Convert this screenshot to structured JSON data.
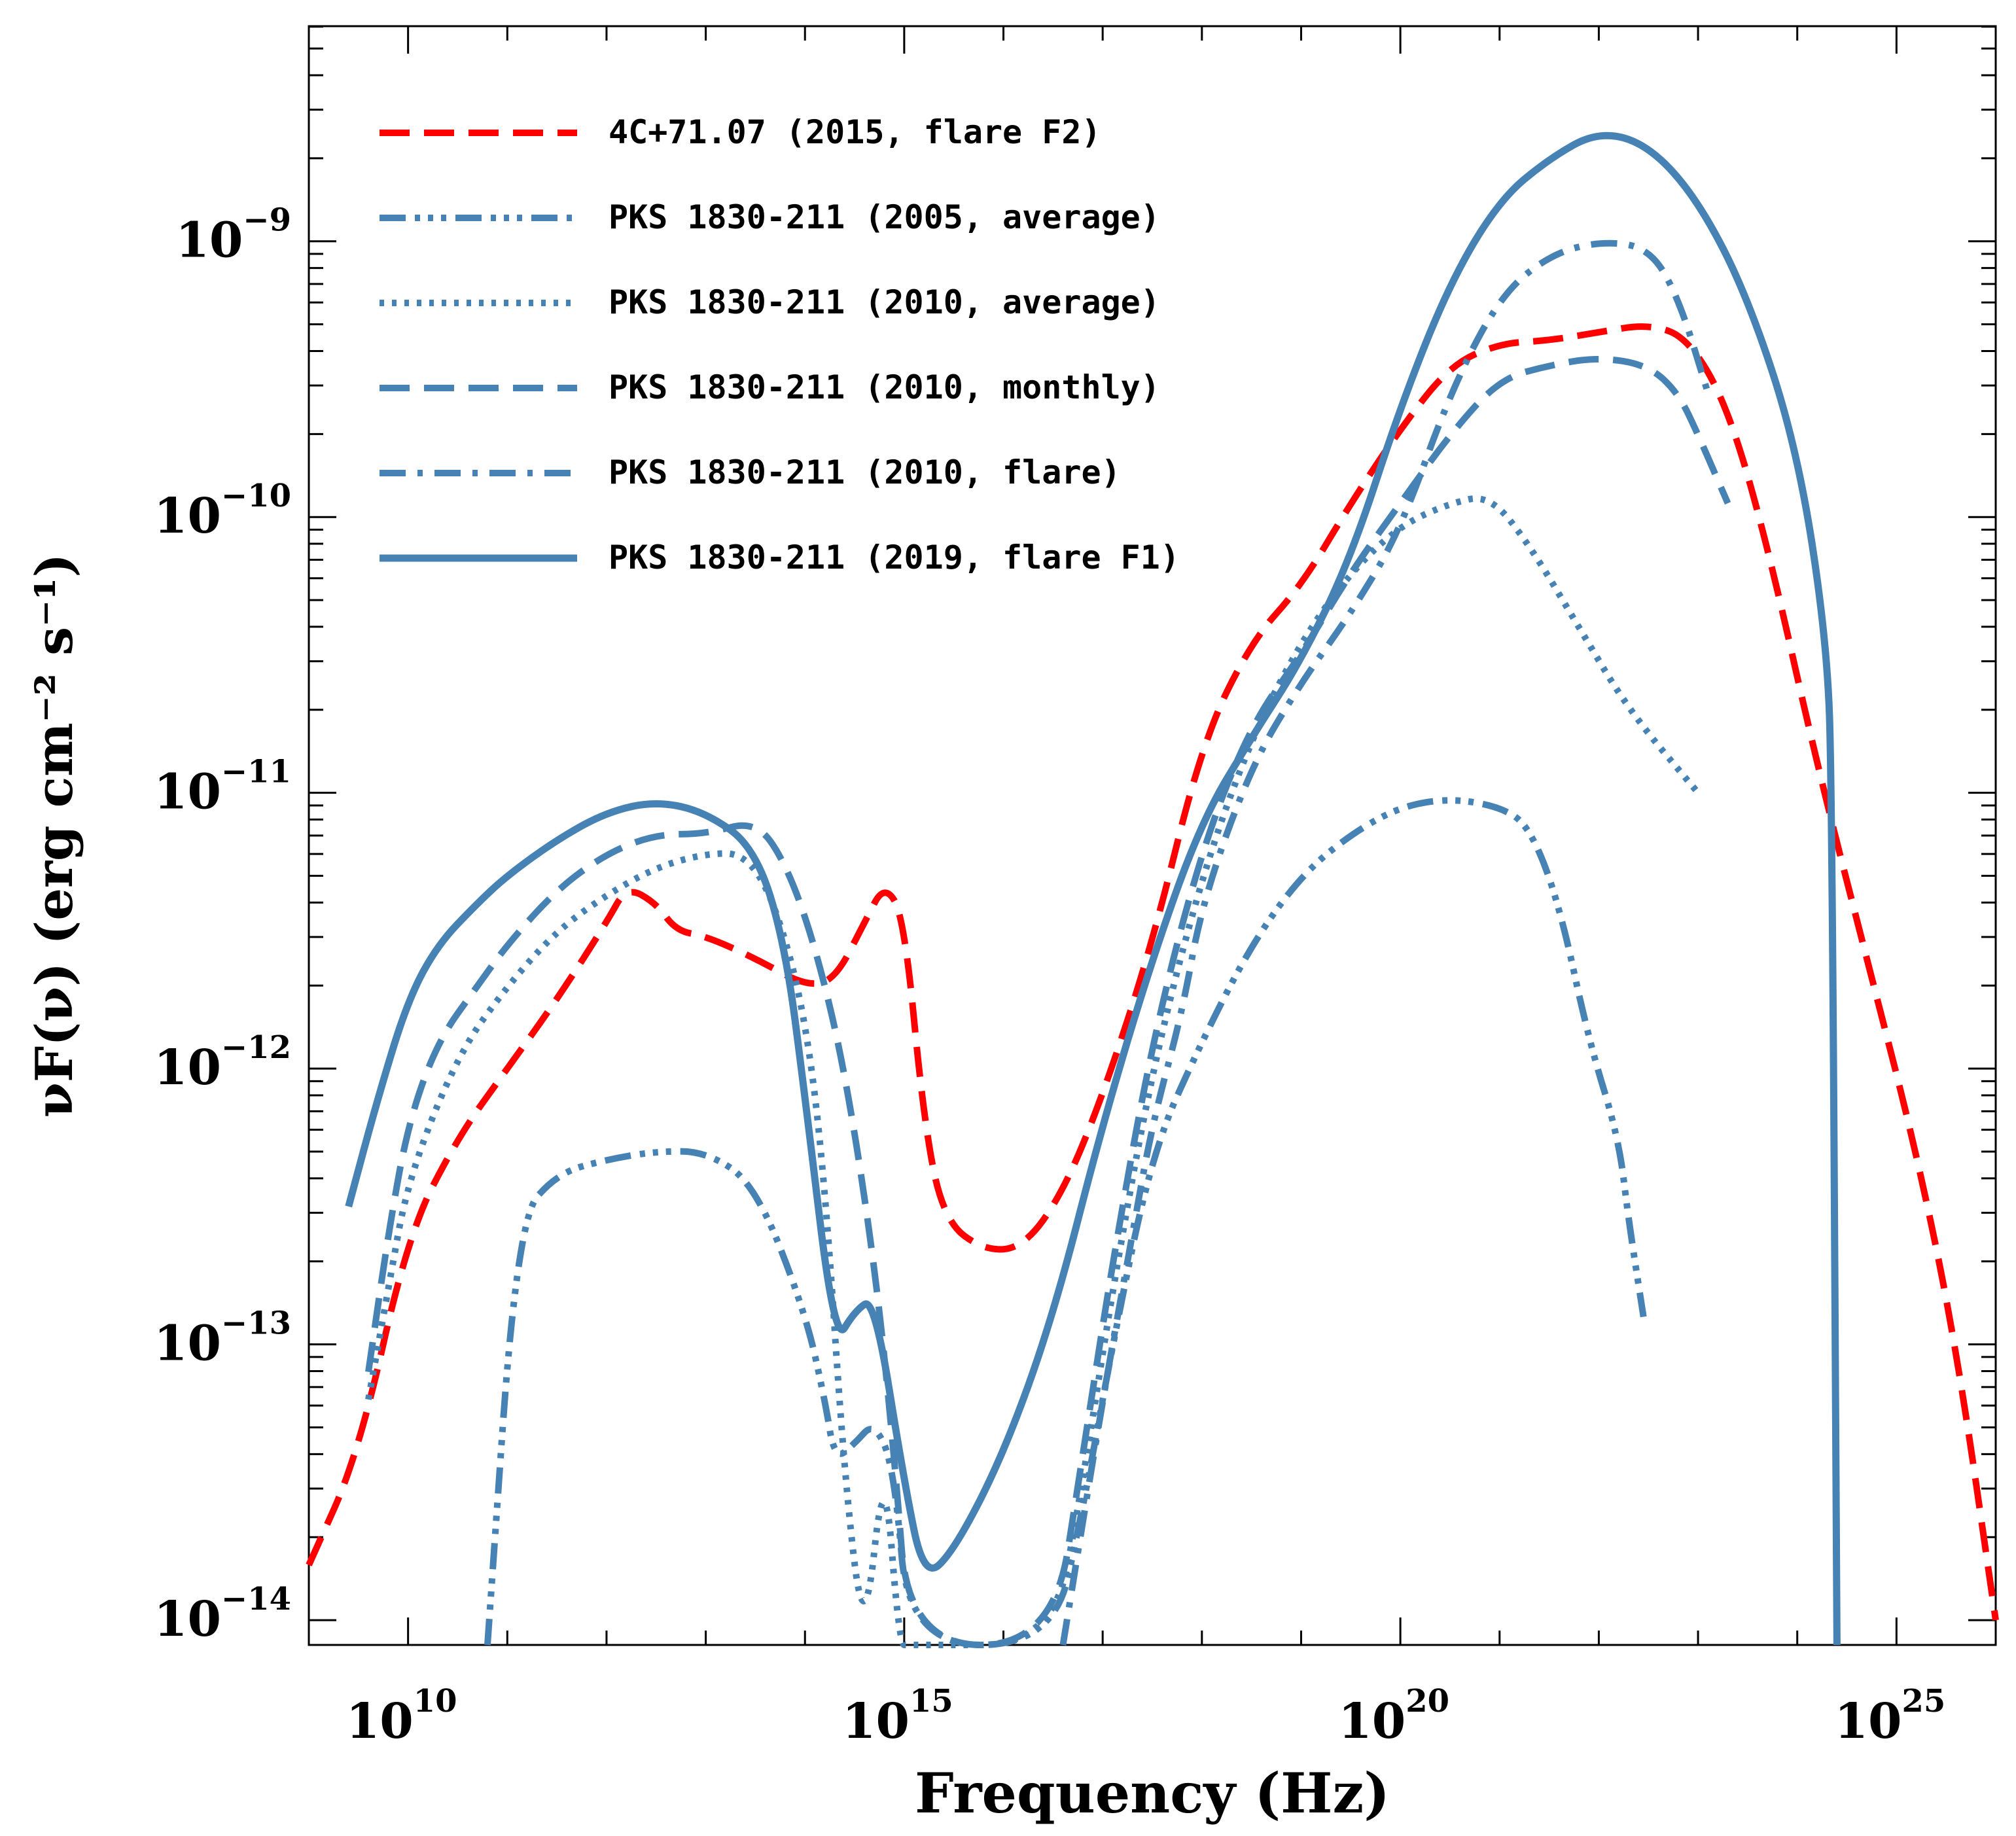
{
  "chart_data": {
    "type": "line",
    "xlabel": "Frequency (Hz)",
    "ylabel": "νF(ν) (erg cm⁻² s⁻¹)",
    "xscale": "log",
    "yscale": "log",
    "xlim_log10": [
      9.0,
      26.0
    ],
    "ylim_log10": [
      -14.09,
      -8.22
    ],
    "grid": false,
    "legend_position": "top-left",
    "x_ticks": [
      {
        "log": 10,
        "base": "10",
        "exp": "10"
      },
      {
        "log": 15,
        "base": "10",
        "exp": "15"
      },
      {
        "log": 20,
        "base": "10",
        "exp": "20"
      },
      {
        "log": 25,
        "base": "10",
        "exp": "25"
      }
    ],
    "y_ticks": [
      {
        "log": -9,
        "base": "10",
        "exp": "−9"
      },
      {
        "log": -10,
        "base": "10",
        "exp": "−10"
      },
      {
        "log": -11,
        "base": "10",
        "exp": "−11"
      },
      {
        "log": -12,
        "base": "10",
        "exp": "−12"
      },
      {
        "log": -13,
        "base": "10",
        "exp": "−13"
      },
      {
        "log": -14,
        "base": "10",
        "exp": "−14"
      }
    ],
    "series": [
      {
        "name": "4C+71.07 (2015, flare F2)",
        "color": "#ff0000",
        "style": "dash",
        "points": [
          [
            9.0,
            -13.8
          ],
          [
            9.5,
            -13.4
          ],
          [
            10.0,
            -12.6
          ],
          [
            10.5,
            -12.25
          ],
          [
            11.0,
            -12.0
          ],
          [
            11.5,
            -11.75
          ],
          [
            12.0,
            -11.47
          ],
          [
            12.2,
            -11.34
          ],
          [
            12.5,
            -11.4
          ],
          [
            12.7,
            -11.5
          ],
          [
            13.0,
            -11.52
          ],
          [
            13.5,
            -11.6
          ],
          [
            14.0,
            -11.7
          ],
          [
            14.3,
            -11.68
          ],
          [
            14.6,
            -11.47
          ],
          [
            14.8,
            -11.33
          ],
          [
            15.0,
            -11.45
          ],
          [
            15.2,
            -12.2
          ],
          [
            15.4,
            -12.55
          ],
          [
            15.8,
            -12.66
          ],
          [
            16.2,
            -12.65
          ],
          [
            16.6,
            -12.45
          ],
          [
            17.0,
            -12.1
          ],
          [
            17.5,
            -11.55
          ],
          [
            18.0,
            -10.82
          ],
          [
            18.5,
            -10.45
          ],
          [
            19.0,
            -10.25
          ],
          [
            19.5,
            -9.95
          ],
          [
            20.0,
            -9.68
          ],
          [
            20.5,
            -9.45
          ],
          [
            21.0,
            -9.37
          ],
          [
            21.5,
            -9.36
          ],
          [
            22.0,
            -9.33
          ],
          [
            22.5,
            -9.3
          ],
          [
            22.9,
            -9.35
          ],
          [
            23.3,
            -9.6
          ],
          [
            23.7,
            -10.1
          ],
          [
            24.2,
            -10.9
          ],
          [
            24.7,
            -11.6
          ],
          [
            25.2,
            -12.3
          ],
          [
            25.6,
            -13.0
          ],
          [
            26.0,
            -14.0
          ]
        ]
      },
      {
        "name": "PKS 1830-211 (2005, average)",
        "color": "#4682b4",
        "style": "dashdotdotdot",
        "points": [
          [
            10.8,
            -14.09
          ],
          [
            11.1,
            -12.55
          ],
          [
            11.5,
            -12.38
          ],
          [
            12.0,
            -12.33
          ],
          [
            12.5,
            -12.3
          ],
          [
            13.0,
            -12.3
          ],
          [
            13.5,
            -12.42
          ],
          [
            14.0,
            -12.88
          ],
          [
            14.2,
            -13.2
          ],
          [
            14.3,
            -13.42
          ],
          [
            14.5,
            -13.36
          ],
          [
            14.7,
            -13.28
          ],
          [
            14.9,
            -13.45
          ],
          [
            15.05,
            -14.09
          ],
          [
            16.5,
            -14.09
          ],
          [
            16.8,
            -13.6
          ],
          [
            17.1,
            -13.0
          ],
          [
            17.5,
            -12.3
          ],
          [
            18.0,
            -11.9
          ],
          [
            18.5,
            -11.55
          ],
          [
            19.0,
            -11.3
          ],
          [
            19.5,
            -11.15
          ],
          [
            20.0,
            -11.05
          ],
          [
            20.5,
            -11.02
          ],
          [
            21.0,
            -11.05
          ],
          [
            21.3,
            -11.12
          ],
          [
            21.6,
            -11.4
          ],
          [
            21.9,
            -11.9
          ],
          [
            22.2,
            -12.25
          ],
          [
            22.3,
            -12.55
          ],
          [
            22.45,
            -12.9
          ]
        ]
      },
      {
        "name": "PKS 1830-211 (2010, average)",
        "color": "#4682b4",
        "style": "dot",
        "points": [
          [
            9.6,
            -13.2
          ],
          [
            9.8,
            -12.8
          ],
          [
            10.0,
            -12.4
          ],
          [
            10.5,
            -11.95
          ],
          [
            11.0,
            -11.7
          ],
          [
            11.5,
            -11.5
          ],
          [
            12.0,
            -11.37
          ],
          [
            12.5,
            -11.27
          ],
          [
            13.0,
            -11.22
          ],
          [
            13.4,
            -11.22
          ],
          [
            13.7,
            -11.4
          ],
          [
            14.0,
            -11.8
          ],
          [
            14.2,
            -12.4
          ],
          [
            14.4,
            -13.5
          ],
          [
            14.6,
            -14.09
          ],
          [
            14.8,
            -13.4
          ],
          [
            14.95,
            -14.09
          ],
          [
            15.05,
            -14.09
          ],
          [
            16.5,
            -14.09
          ],
          [
            16.8,
            -13.5
          ],
          [
            17.1,
            -12.8
          ],
          [
            17.5,
            -12.0
          ],
          [
            18.0,
            -11.3
          ],
          [
            18.5,
            -10.8
          ],
          [
            19.0,
            -10.45
          ],
          [
            19.5,
            -10.2
          ],
          [
            20.0,
            -10.03
          ],
          [
            20.5,
            -9.95
          ],
          [
            20.9,
            -9.92
          ],
          [
            21.3,
            -10.1
          ],
          [
            21.8,
            -10.4
          ],
          [
            22.3,
            -10.7
          ],
          [
            23.0,
            -11.0
          ]
        ]
      },
      {
        "name": "PKS 1830-211 (2010, monthly)",
        "color": "#4682b4",
        "style": "dash",
        "points": [
          [
            9.6,
            -13.1
          ],
          [
            9.8,
            -12.6
          ],
          [
            10.0,
            -12.2
          ],
          [
            10.3,
            -11.9
          ],
          [
            10.7,
            -11.7
          ],
          [
            11.0,
            -11.55
          ],
          [
            11.5,
            -11.35
          ],
          [
            12.0,
            -11.22
          ],
          [
            12.5,
            -11.15
          ],
          [
            13.0,
            -11.15
          ],
          [
            13.5,
            -11.1
          ],
          [
            13.8,
            -11.25
          ],
          [
            14.1,
            -11.55
          ],
          [
            14.4,
            -12.0
          ],
          [
            14.7,
            -12.7
          ],
          [
            14.9,
            -13.4
          ],
          [
            15.05,
            -14.09
          ],
          [
            16.5,
            -14.09
          ],
          [
            16.8,
            -13.4
          ],
          [
            17.1,
            -12.7
          ],
          [
            17.5,
            -11.9
          ],
          [
            18.0,
            -11.2
          ],
          [
            18.5,
            -10.75
          ],
          [
            19.0,
            -10.5
          ],
          [
            19.5,
            -10.2
          ],
          [
            20.0,
            -9.95
          ],
          [
            20.5,
            -9.7
          ],
          [
            21.0,
            -9.5
          ],
          [
            21.5,
            -9.45
          ],
          [
            22.0,
            -9.42
          ],
          [
            22.5,
            -9.45
          ],
          [
            22.8,
            -9.55
          ],
          [
            23.0,
            -9.7
          ],
          [
            23.3,
            -9.95
          ]
        ]
      },
      {
        "name": "PKS 1830-211 (2010, flare)",
        "color": "#4682b4",
        "style": "dashdot",
        "points": [
          [
            16.6,
            -14.09
          ],
          [
            17.0,
            -13.2
          ],
          [
            17.3,
            -12.6
          ],
          [
            17.5,
            -12.2
          ],
          [
            17.8,
            -11.8
          ],
          [
            18.0,
            -11.4
          ],
          [
            18.5,
            -10.9
          ],
          [
            19.0,
            -10.6
          ],
          [
            19.5,
            -10.35
          ],
          [
            20.0,
            -10.05
          ],
          [
            20.5,
            -9.55
          ],
          [
            21.0,
            -9.2
          ],
          [
            21.5,
            -9.05
          ],
          [
            22.0,
            -9.0
          ],
          [
            22.5,
            -9.02
          ],
          [
            22.8,
            -9.2
          ],
          [
            23.1,
            -9.55
          ]
        ]
      },
      {
        "name": "PKS 1830-211 (2019, flare F1)",
        "color": "#4682b4",
        "style": "solid",
        "points": [
          [
            9.4,
            -12.5
          ],
          [
            9.7,
            -12.1
          ],
          [
            10.0,
            -11.75
          ],
          [
            10.3,
            -11.55
          ],
          [
            10.7,
            -11.4
          ],
          [
            11.0,
            -11.3
          ],
          [
            11.5,
            -11.17
          ],
          [
            12.0,
            -11.07
          ],
          [
            12.5,
            -11.03
          ],
          [
            13.0,
            -11.07
          ],
          [
            13.5,
            -11.2
          ],
          [
            13.8,
            -11.55
          ],
          [
            14.0,
            -12.1
          ],
          [
            14.3,
            -13.0
          ],
          [
            14.5,
            -12.88
          ],
          [
            14.7,
            -12.83
          ],
          [
            15.0,
            -13.5
          ],
          [
            15.2,
            -13.85
          ],
          [
            15.5,
            -13.75
          ],
          [
            16.0,
            -13.4
          ],
          [
            16.5,
            -12.9
          ],
          [
            17.0,
            -12.2
          ],
          [
            17.5,
            -11.6
          ],
          [
            18.0,
            -11.1
          ],
          [
            18.5,
            -10.8
          ],
          [
            19.0,
            -10.52
          ],
          [
            19.5,
            -10.15
          ],
          [
            20.0,
            -9.6
          ],
          [
            20.5,
            -9.15
          ],
          [
            21.0,
            -8.85
          ],
          [
            21.5,
            -8.7
          ],
          [
            22.0,
            -8.6
          ],
          [
            22.5,
            -8.65
          ],
          [
            23.0,
            -8.85
          ],
          [
            23.5,
            -9.2
          ],
          [
            24.0,
            -9.75
          ],
          [
            24.3,
            -10.45
          ],
          [
            24.35,
            -11.0
          ],
          [
            24.4,
            -14.09
          ]
        ]
      }
    ]
  }
}
